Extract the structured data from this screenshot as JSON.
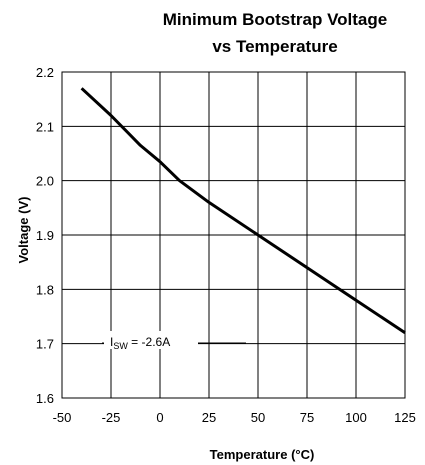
{
  "chart_data": {
    "type": "line",
    "title_line1": "Minimum Bootstrap Voltage",
    "title_line2": "vs Temperature",
    "xlabel": "Temperature (°C)",
    "ylabel": "Voltage (V)",
    "xlim": [
      -50,
      125
    ],
    "ylim": [
      1.6,
      2.2
    ],
    "x_ticks": [
      -50,
      -25,
      0,
      25,
      50,
      75,
      100,
      125
    ],
    "x_tick_labels": [
      "-50",
      "-25",
      "0",
      "25",
      "50",
      "75",
      "100",
      "125"
    ],
    "y_ticks": [
      1.6,
      1.7,
      1.8,
      1.9,
      2.0,
      2.1,
      2.2
    ],
    "y_tick_labels": [
      "1.6",
      "1.7",
      "1.8",
      "1.9",
      "2.0",
      "2.1",
      "2.2"
    ],
    "grid": true,
    "annotation": {
      "main": "I",
      "sub": "SW",
      "rest": " = -2.6A"
    },
    "series": [
      {
        "x": [
          -40,
          -25,
          -10,
          0,
          10,
          25,
          50,
          75,
          100,
          125
        ],
        "y": [
          2.17,
          2.12,
          2.065,
          2.035,
          2.0,
          1.96,
          1.9,
          1.84,
          1.78,
          1.72
        ]
      }
    ]
  }
}
